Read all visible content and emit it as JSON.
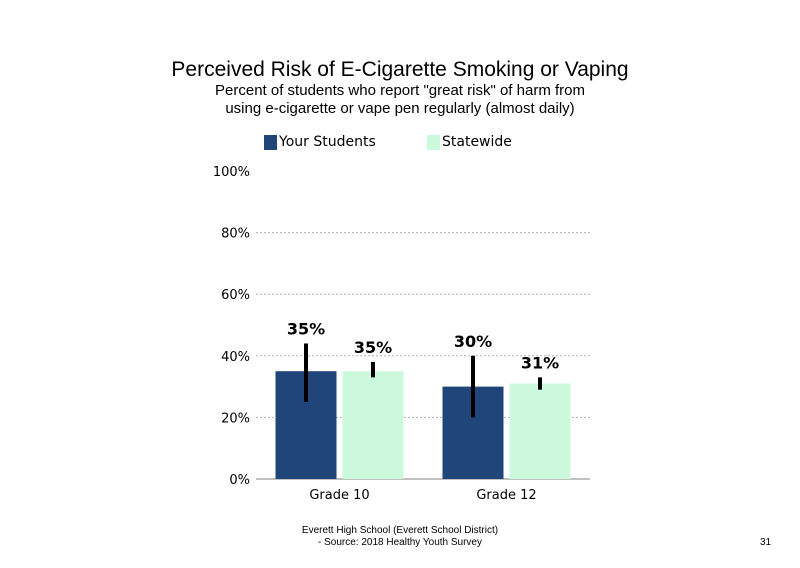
{
  "title": "Perceived Risk of E-Cigarette Smoking or Vaping",
  "subtitle_line1": "Percent of students who report \"great risk\" of harm from",
  "subtitle_line2": "using e-cigarette or vape pen regularly (almost daily)",
  "legend": [
    {
      "label": "Your Students",
      "color": "#1f4579"
    },
    {
      "label": "Statewide",
      "color": "#ccf8dc"
    }
  ],
  "footer_line1": "Everett High School (Everett School District)",
  "footer_line2": "- Source: 2018 Healthy Youth Survey",
  "page_number": "31",
  "chart_data": {
    "type": "bar",
    "categories": [
      "Grade 10",
      "Grade 12"
    ],
    "series": [
      {
        "name": "Your Students",
        "color": "#1f4579",
        "values": [
          35,
          30
        ],
        "labels": [
          "35%",
          "30%"
        ],
        "error": [
          [
            25,
            44
          ],
          [
            20,
            40
          ]
        ]
      },
      {
        "name": "Statewide",
        "color": "#ccf8dc",
        "values": [
          35,
          31
        ],
        "labels": [
          "35%",
          "31%"
        ],
        "error": [
          [
            33,
            38
          ],
          [
            29,
            33
          ]
        ]
      }
    ],
    "ylim": [
      0,
      100
    ],
    "yticks": [
      0,
      20,
      40,
      60,
      80,
      100
    ],
    "ytick_labels": [
      "0%",
      "20%",
      "40%",
      "60%",
      "80%",
      "100%"
    ],
    "grid": true,
    "legend_position": "top"
  }
}
